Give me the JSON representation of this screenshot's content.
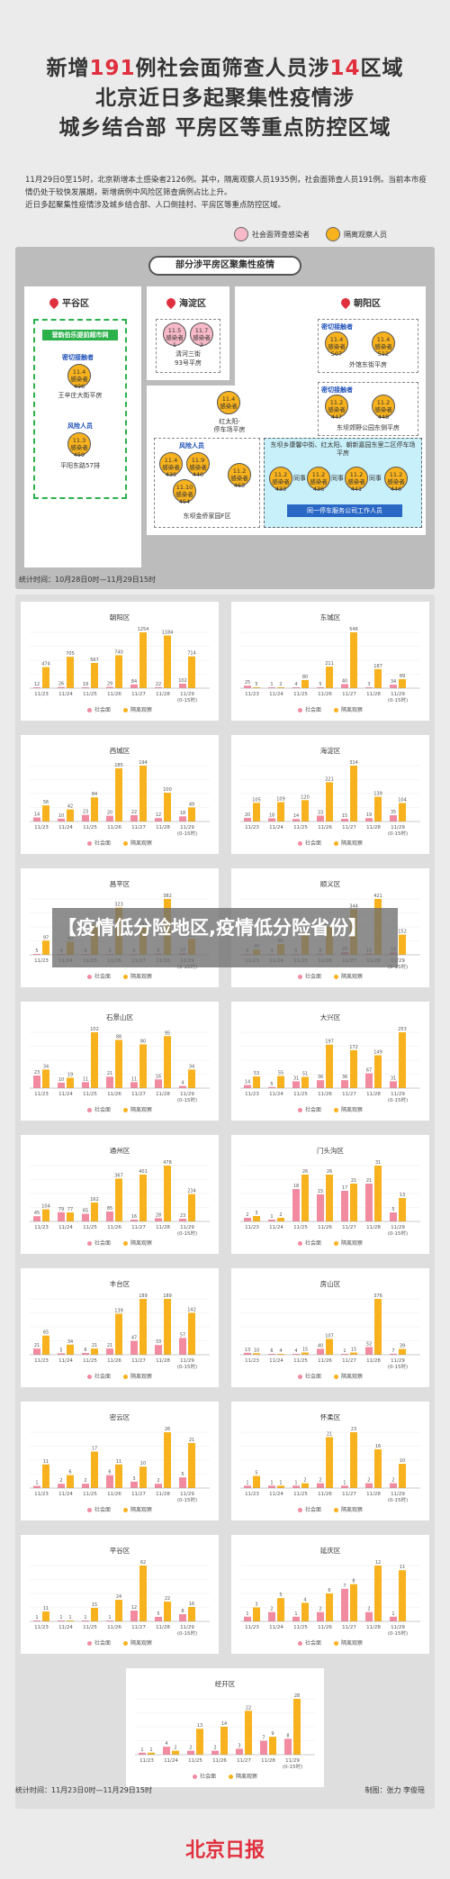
{
  "header": {
    "line1_a": "新增",
    "line1_num1": "191",
    "line1_b": "例社会面筛查人员涉",
    "line1_num2": "14",
    "line1_c": "区域",
    "line2": "北京近日多起聚集性疫情涉",
    "line3": "城乡结合部 平房区等重点防控区域"
  },
  "intro": {
    "text1": "11月29日0至15时，北京新增本土感染者2126例。其中，隔离观察人员1935例，社会面筛查人员191例。当前本市疫情仍处于较快发展期，新增病例中风险区筛查病例占比上升。",
    "text2": "近日多起聚集性疫情涉及城乡结合部、人口倒挂村、平房区等重点防控区域。"
  },
  "legend_top": {
    "pink_label": "社会面筛查感染者",
    "orange_label": "隔离观察人员",
    "pink_color": "#f7b9c7",
    "orange_color": "#f7b21e"
  },
  "map": {
    "title": "部分涉平房区聚集性疫情",
    "pinggu": {
      "name": "平谷区",
      "bar": "营韵伯乐提前超市网",
      "close_contact": "密切接触者",
      "c1": "11.4\n感染者\n496",
      "loc1": "王辛庄大街平房",
      "risk": "风险人员",
      "c2": "11.3\n感染者\n459",
      "loc2": "平阳东路57排"
    },
    "haidian": {
      "name": "海淀区",
      "c1": "11.5\n感染者\n1",
      "c2": "11.7\n感染者\n2",
      "loc1": "清河三街",
      "loc2": "93号平房"
    },
    "chaoyang": {
      "name": "朝阳区",
      "close1": "密切接触者",
      "c1": "11.4\n感染者\n507",
      "c2": "11.4\n感染者\n512",
      "loc1": "外馆东街平房",
      "close2": "密切接触者",
      "c3": "11.2\n感染者\n447",
      "c4": "11.2\n感染者\n448",
      "loc2": "东坝郊野公园东侧平房",
      "center_c": "11.4\n感染者",
      "center_loc": "红太阳-\n停车场平房",
      "risk": "风险人员",
      "c5": "11.4\n感染者\n439",
      "c6": "11.9\n感染者\n440",
      "c7": "11.10\n感染者\n454",
      "c8": "11.2\n感染者\n463",
      "loc3": "东坝金侨家园F区",
      "cyan_title": "东坝乡康馨中街、红太阳、朝新嘉园东里二区停车场平房",
      "c9": "11.2\n感染者\n433",
      "c10": "11.2\n感染者\n436",
      "c11": "11.2\n感染者\n441",
      "c12": "11.2\n感染者\n446",
      "same": "同事",
      "company": "同一停车服务公司工作人员"
    },
    "stat_time": "统计时间：10月28日0时—11月29日15时"
  },
  "banner": "【疫情低分险地区,疫情低分险省份】",
  "chart_legend": {
    "pink": "社会面",
    "orange": "隔离观察"
  },
  "chart_data": [
    {
      "type": "bar",
      "title": "朝阳区",
      "categories": [
        "11/23",
        "11/24",
        "11/25",
        "11/26",
        "11/27",
        "11/28",
        "11/29\n(0-15时)"
      ],
      "series": [
        {
          "name": "社会面",
          "values": [
            12,
            26,
            19,
            29,
            84,
            22,
            102
          ]
        },
        {
          "name": "隔离观察",
          "values": [
            474,
            705,
            567,
            740,
            1254,
            1184,
            714
          ]
        }
      ]
    },
    {
      "type": "bar",
      "title": "东城区",
      "categories": [
        "11/23",
        "11/24",
        "11/25",
        "11/26",
        "11/27",
        "11/28",
        "11/29\n(0-15时)"
      ],
      "series": [
        {
          "name": "社会面",
          "values": [
            25,
            1,
            4,
            5,
            40,
            3,
            34
          ]
        },
        {
          "name": "隔离观察",
          "values": [
            5,
            2,
            80,
            211,
            546,
            187,
            89
          ]
        }
      ]
    },
    {
      "type": "bar",
      "title": "西城区",
      "categories": [
        "11/23",
        "11/24",
        "11/25",
        "11/26",
        "11/27",
        "11/28",
        "11/29\n(0-15时)"
      ],
      "series": [
        {
          "name": "社会面",
          "values": [
            14,
            10,
            23,
            20,
            22,
            12,
            18
          ]
        },
        {
          "name": "隔离观察",
          "values": [
            56,
            42,
            84,
            185,
            194,
            100,
            49
          ]
        }
      ]
    },
    {
      "type": "bar",
      "title": "海淀区",
      "categories": [
        "11/23",
        "11/24",
        "11/25",
        "11/26",
        "11/27",
        "11/28",
        "11/29\n(0-15时)"
      ],
      "series": [
        {
          "name": "社会面",
          "values": [
            20,
            18,
            14,
            33,
            15,
            19,
            35
          ]
        },
        {
          "name": "隔离观察",
          "values": [
            105,
            109,
            120,
            221,
            314,
            139,
            104
          ]
        }
      ]
    },
    {
      "type": "bar",
      "title": "昌平区",
      "categories": [
        "11/23",
        "11/24",
        "11/25",
        "11/26",
        "11/27",
        "11/28",
        "11/29\n(0-15时)"
      ],
      "series": [
        {
          "name": "社会面",
          "values": [
            5,
            4,
            6,
            3,
            6,
            8,
            12
          ]
        },
        {
          "name": "隔离观察",
          "values": [
            97,
            90,
            204,
            323,
            192,
            382,
            110
          ]
        }
      ]
    },
    {
      "type": "bar",
      "title": "顺义区",
      "categories": [
        "11/23",
        "11/24",
        "11/25",
        "11/26",
        "11/27",
        "11/28",
        "11/29\n(0-15时)"
      ],
      "series": [
        {
          "name": "社会面",
          "values": [
            6,
            4,
            5,
            8,
            20,
            10,
            18
          ]
        },
        {
          "name": "隔离观察",
          "values": [
            40,
            80,
            167,
            212,
            344,
            421,
            152
          ]
        }
      ]
    },
    {
      "type": "bar",
      "title": "石景山区",
      "categories": [
        "11/23",
        "11/24",
        "11/25",
        "11/26",
        "11/27",
        "11/28",
        "11/29\n(0-15时)"
      ],
      "series": [
        {
          "name": "社会面",
          "values": [
            23,
            10,
            11,
            21,
            11,
            16,
            4
          ]
        },
        {
          "name": "隔离观察",
          "values": [
            34,
            19,
            102,
            88,
            80,
            95,
            34
          ]
        }
      ]
    },
    {
      "type": "bar",
      "title": "大兴区",
      "categories": [
        "11/23",
        "11/24",
        "11/25",
        "11/26",
        "11/27",
        "11/28",
        "11/29\n(0-15时)"
      ],
      "series": [
        {
          "name": "社会面",
          "values": [
            14,
            5,
            31,
            36,
            36,
            67,
            31
          ]
        },
        {
          "name": "隔离观察",
          "values": [
            53,
            55,
            51,
            197,
            172,
            149,
            253
          ]
        }
      ]
    },
    {
      "type": "bar",
      "title": "通州区",
      "categories": [
        "11/23",
        "11/24",
        "11/25",
        "11/26",
        "11/27",
        "11/28",
        "11/29\n(0-15时)"
      ],
      "series": [
        {
          "name": "社会面",
          "values": [
            45,
            79,
            65,
            85,
            16,
            28,
            23
          ]
        },
        {
          "name": "隔离观察",
          "values": [
            104,
            77,
            162,
            367,
            401,
            478,
            234
          ]
        }
      ]
    },
    {
      "type": "bar",
      "title": "门头沟区",
      "categories": [
        "11/23",
        "11/24",
        "11/25",
        "11/26",
        "11/27",
        "11/28",
        "11/29\n(0-15时)"
      ],
      "series": [
        {
          "name": "社会面",
          "values": [
            2,
            1,
            18,
            15,
            17,
            21,
            5
          ]
        },
        {
          "name": "隔离观察",
          "values": [
            3,
            2,
            26,
            26,
            21,
            31,
            13
          ]
        }
      ]
    },
    {
      "type": "bar",
      "title": "丰台区",
      "categories": [
        "11/23",
        "11/24",
        "11/25",
        "11/26",
        "11/27",
        "11/28",
        "11/29\n(0-15时)"
      ],
      "series": [
        {
          "name": "社会面",
          "values": [
            21,
            5,
            6,
            21,
            47,
            33,
            57
          ]
        },
        {
          "name": "隔离观察",
          "values": [
            65,
            34,
            21,
            139,
            189,
            189,
            142
          ]
        }
      ]
    },
    {
      "type": "bar",
      "title": "房山区",
      "categories": [
        "11/23",
        "11/24",
        "11/25",
        "11/26",
        "11/27",
        "11/28",
        "11/29\n(0-15时)"
      ],
      "series": [
        {
          "name": "社会面",
          "values": [
            13,
            6,
            4,
            40,
            1,
            52,
            7
          ]
        },
        {
          "name": "隔离观察",
          "values": [
            10,
            4,
            15,
            107,
            15,
            376,
            39
          ]
        }
      ]
    },
    {
      "type": "bar",
      "title": "密云区",
      "categories": [
        "11/23",
        "11/24",
        "11/25",
        "11/26",
        "11/27",
        "11/28",
        "11/29\n(0-15时)"
      ],
      "series": [
        {
          "name": "社会面",
          "values": [
            1,
            2,
            2,
            6,
            3,
            2,
            5
          ]
        },
        {
          "name": "隔离观察",
          "values": [
            11,
            6,
            17,
            11,
            10,
            26,
            21
          ]
        }
      ]
    },
    {
      "type": "bar",
      "title": "怀柔区",
      "categories": [
        "11/23",
        "11/24",
        "11/25",
        "11/26",
        "11/27",
        "11/28",
        "11/29\n(0-15时)"
      ],
      "series": [
        {
          "name": "社会面",
          "values": [
            1,
            1,
            1,
            2,
            1,
            2,
            2
          ]
        },
        {
          "name": "隔离观察",
          "values": [
            5,
            1,
            2,
            21,
            23,
            16,
            10
          ]
        }
      ]
    },
    {
      "type": "bar",
      "title": "平谷区",
      "categories": [
        "11/23",
        "11/24",
        "11/25",
        "11/26",
        "11/27",
        "11/28",
        "11/29\n(0-15时)"
      ],
      "series": [
        {
          "name": "社会面",
          "values": [
            1,
            1,
            1,
            1,
            12,
            5,
            8
          ]
        },
        {
          "name": "隔离观察",
          "values": [
            11,
            1,
            15,
            24,
            62,
            22,
            16
          ]
        }
      ]
    },
    {
      "type": "bar",
      "title": "延庆区",
      "categories": [
        "11/23",
        "11/24",
        "11/25",
        "11/26",
        "11/27",
        "11/28",
        "11/29\n(0-15时)"
      ],
      "series": [
        {
          "name": "社会面",
          "values": [
            1,
            2,
            1,
            2,
            7,
            2,
            1
          ]
        },
        {
          "name": "隔离观察",
          "values": [
            3,
            5,
            4,
            6,
            8,
            12,
            11
          ]
        }
      ]
    },
    {
      "type": "bar",
      "title": "经开区",
      "categories": [
        "11/23",
        "11/24",
        "11/25",
        "11/26",
        "11/27",
        "11/28",
        "11/29\n(0-15时)"
      ],
      "series": [
        {
          "name": "社会面",
          "values": [
            1,
            4,
            2,
            2,
            3,
            7,
            8
          ]
        },
        {
          "name": "隔离观察",
          "values": [
            1,
            2,
            13,
            14,
            22,
            9,
            28
          ]
        }
      ]
    }
  ],
  "footer": {
    "stat_time": "统计时间：11月23日0时—11月29日15时",
    "credit": "制图：张力 李俊瑶",
    "logo": "北京日报"
  }
}
